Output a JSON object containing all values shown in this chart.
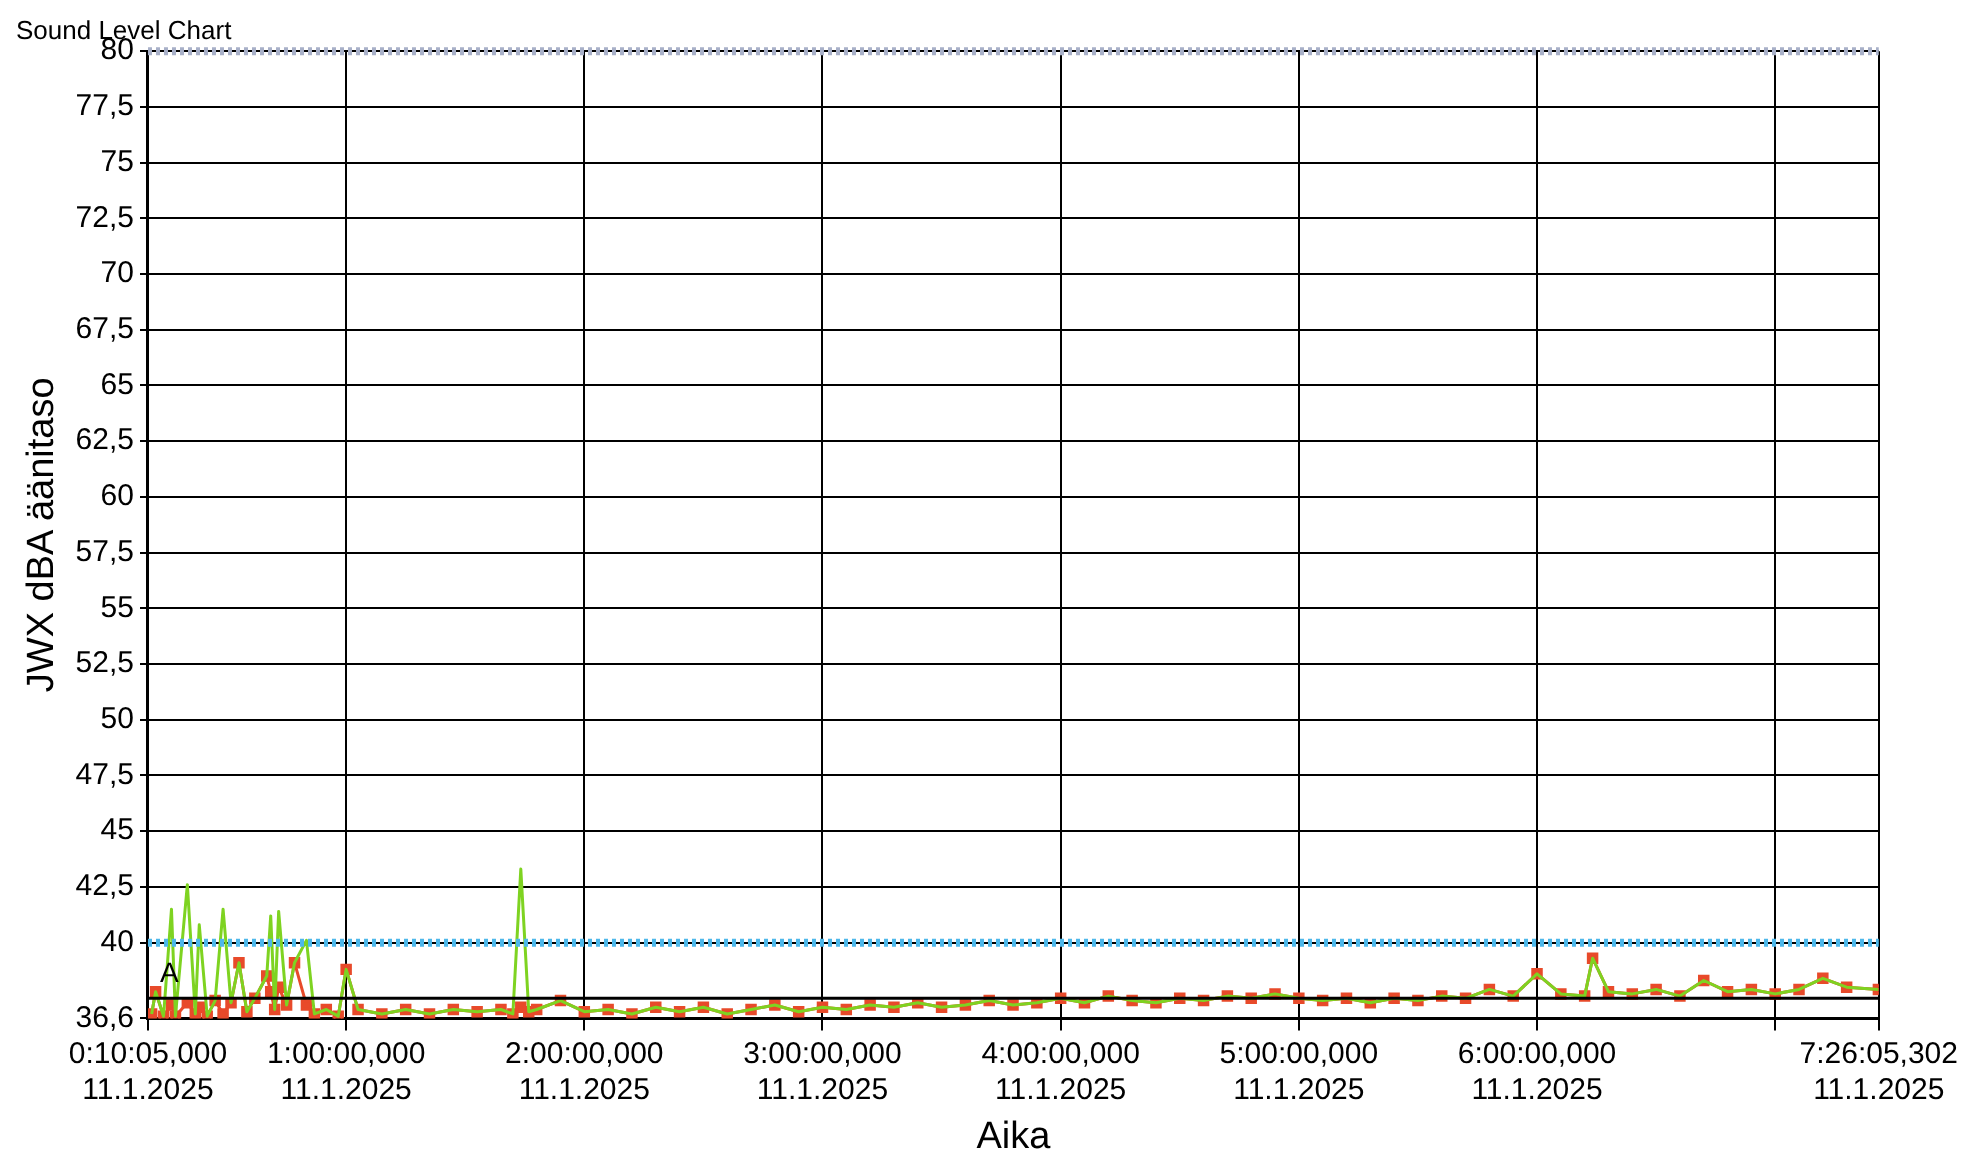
{
  "chart_data": {
    "type": "line",
    "title": "Sound Level Chart",
    "xlabel": "Aika",
    "ylabel": "JWX dBA äänitaso",
    "x": [
      "2025-01-11T00:11",
      "2025-01-11T00:12",
      "2025-01-11T00:14",
      "2025-01-11T00:16",
      "2025-01-11T00:17",
      "2025-01-11T00:20",
      "2025-01-11T00:22",
      "2025-01-11T00:23",
      "2025-01-11T00:25",
      "2025-01-11T00:27",
      "2025-01-11T00:29",
      "2025-01-11T00:31",
      "2025-01-11T00:33",
      "2025-01-11T00:35",
      "2025-01-11T00:37",
      "2025-01-11T00:40",
      "2025-01-11T00:41",
      "2025-01-11T00:42",
      "2025-01-11T00:43",
      "2025-01-11T00:45",
      "2025-01-11T00:47",
      "2025-01-11T00:50",
      "2025-01-11T00:52",
      "2025-01-11T00:55",
      "2025-01-11T00:58",
      "2025-01-11T01:00",
      "2025-01-11T01:03",
      "2025-01-11T01:09",
      "2025-01-11T01:15",
      "2025-01-11T01:21",
      "2025-01-11T01:27",
      "2025-01-11T01:33",
      "2025-01-11T01:39",
      "2025-01-11T01:42",
      "2025-01-11T01:44",
      "2025-01-11T01:46",
      "2025-01-11T01:48",
      "2025-01-11T01:54",
      "2025-01-11T02:00",
      "2025-01-11T02:06",
      "2025-01-11T02:12",
      "2025-01-11T02:18",
      "2025-01-11T02:24",
      "2025-01-11T02:30",
      "2025-01-11T02:36",
      "2025-01-11T02:42",
      "2025-01-11T02:48",
      "2025-01-11T02:54",
      "2025-01-11T03:00",
      "2025-01-11T03:06",
      "2025-01-11T03:12",
      "2025-01-11T03:18",
      "2025-01-11T03:24",
      "2025-01-11T03:30",
      "2025-01-11T03:36",
      "2025-01-11T03:42",
      "2025-01-11T03:48",
      "2025-01-11T03:54",
      "2025-01-11T04:00",
      "2025-01-11T04:06",
      "2025-01-11T04:12",
      "2025-01-11T04:18",
      "2025-01-11T04:24",
      "2025-01-11T04:30",
      "2025-01-11T04:36",
      "2025-01-11T04:42",
      "2025-01-11T04:48",
      "2025-01-11T04:54",
      "2025-01-11T05:00",
      "2025-01-11T05:06",
      "2025-01-11T05:12",
      "2025-01-11T05:18",
      "2025-01-11T05:24",
      "2025-01-11T05:30",
      "2025-01-11T05:36",
      "2025-01-11T05:42",
      "2025-01-11T05:48",
      "2025-01-11T05:54",
      "2025-01-11T06:00",
      "2025-01-11T06:06",
      "2025-01-11T06:12",
      "2025-01-11T06:14",
      "2025-01-11T06:18",
      "2025-01-11T06:24",
      "2025-01-11T06:30",
      "2025-01-11T06:36",
      "2025-01-11T06:42",
      "2025-01-11T06:48",
      "2025-01-11T06:54",
      "2025-01-11T07:00",
      "2025-01-11T07:06",
      "2025-01-11T07:12",
      "2025-01-11T07:18",
      "2025-01-11T07:26"
    ],
    "series": [
      {
        "color": "#7ed321",
        "marker": "none",
        "values": [
          36.8,
          37.8,
          36.7,
          41.5,
          36.7,
          42.6,
          36.8,
          40.8,
          36.7,
          37.4,
          41.5,
          37.3,
          39.1,
          36.9,
          37.5,
          38.5,
          41.2,
          37.0,
          41.4,
          37.2,
          39.1,
          40.1,
          36.8,
          37.0,
          36.7,
          38.8,
          37.0,
          36.8,
          37.0,
          36.8,
          37.0,
          36.9,
          37.0,
          36.8,
          43.3,
          36.9,
          37.0,
          37.4,
          36.9,
          37.0,
          36.8,
          37.1,
          36.9,
          37.1,
          36.8,
          37.0,
          37.2,
          36.9,
          37.1,
          37.0,
          37.2,
          37.1,
          37.3,
          37.1,
          37.2,
          37.4,
          37.2,
          37.3,
          37.5,
          37.3,
          37.6,
          37.4,
          37.3,
          37.5,
          37.4,
          37.6,
          37.5,
          37.7,
          37.5,
          37.4,
          37.5,
          37.3,
          37.5,
          37.4,
          37.6,
          37.5,
          37.9,
          37.6,
          38.6,
          37.7,
          37.6,
          39.3,
          37.8,
          37.7,
          37.9,
          37.6,
          38.3,
          37.8,
          37.9,
          37.7,
          37.9,
          38.4,
          38.0,
          37.9
        ]
      },
      {
        "color": "#e84a2a",
        "marker": "square",
        "values": [
          36.8,
          37.8,
          36.7,
          37.2,
          36.7,
          37.3,
          36.8,
          37.1,
          36.7,
          37.4,
          36.8,
          37.3,
          39.1,
          36.9,
          37.5,
          38.5,
          37.8,
          37.0,
          38.0,
          37.2,
          39.1,
          37.2,
          36.8,
          37.0,
          36.7,
          38.8,
          37.0,
          36.8,
          37.0,
          36.8,
          37.0,
          36.9,
          37.0,
          36.8,
          37.1,
          36.9,
          37.0,
          37.4,
          36.9,
          37.0,
          36.8,
          37.1,
          36.9,
          37.1,
          36.8,
          37.0,
          37.2,
          36.9,
          37.1,
          37.0,
          37.2,
          37.1,
          37.3,
          37.1,
          37.2,
          37.4,
          37.2,
          37.3,
          37.5,
          37.3,
          37.6,
          37.4,
          37.3,
          37.5,
          37.4,
          37.6,
          37.5,
          37.7,
          37.5,
          37.4,
          37.5,
          37.3,
          37.5,
          37.4,
          37.6,
          37.5,
          37.9,
          37.6,
          38.6,
          37.7,
          37.6,
          39.3,
          37.8,
          37.7,
          37.9,
          37.6,
          38.3,
          37.8,
          37.9,
          37.7,
          37.9,
          38.4,
          38.0,
          37.9
        ]
      }
    ],
    "xlim": [
      "2025-01-11T00:10:05",
      "2025-01-11T07:26:05.302"
    ],
    "xticks": [
      {
        "value": "2025-01-11T00:10:05",
        "label": "0:10:05,000\n11.1.2025"
      },
      {
        "value": "2025-01-11T01:00",
        "label": "1:00:00,000\n11.1.2025"
      },
      {
        "value": "2025-01-11T02:00",
        "label": "2:00:00,000\n11.1.2025"
      },
      {
        "value": "2025-01-11T03:00",
        "label": "3:00:00,000\n11.1.2025"
      },
      {
        "value": "2025-01-11T04:00",
        "label": "4:00:00,000\n11.1.2025"
      },
      {
        "value": "2025-01-11T05:00",
        "label": "5:00:00,000\n11.1.2025"
      },
      {
        "value": "2025-01-11T06:00",
        "label": "6:00:00,000\n11.1.2025"
      },
      {
        "value": "2025-01-11T07:00",
        "label": null
      },
      {
        "value": "2025-01-11T07:26:05.302",
        "label": "7:26:05,302\n11.1.2025"
      }
    ],
    "ylim": [
      36.6,
      80
    ],
    "yticks": [
      {
        "value": 36.6,
        "label": "36,6"
      },
      40,
      {
        "value": 42.5,
        "label": "42,5"
      },
      45,
      {
        "value": 47.5,
        "label": "47,5"
      },
      50,
      {
        "value": 52.5,
        "label": "52,5"
      },
      55,
      {
        "value": 57.5,
        "label": "57,5"
      },
      60,
      {
        "value": 62.5,
        "label": "62,5"
      },
      65,
      {
        "value": 67.5,
        "label": "67,5"
      },
      70,
      {
        "value": 72.5,
        "label": "72,5"
      },
      75,
      {
        "value": 77.5,
        "label": "77,5"
      },
      80
    ],
    "ref_lines": [
      {
        "axis": "y",
        "value": 40,
        "color": "#4db8ea",
        "line_style": "dotted"
      },
      {
        "axis": "y",
        "value": 80,
        "color": "#a8b0c8",
        "line_style": "dotted"
      },
      {
        "axis": "y",
        "value": 37.5,
        "label": "A",
        "color": "#000000",
        "line_style": "solid"
      }
    ],
    "grid": true,
    "legend": false
  }
}
